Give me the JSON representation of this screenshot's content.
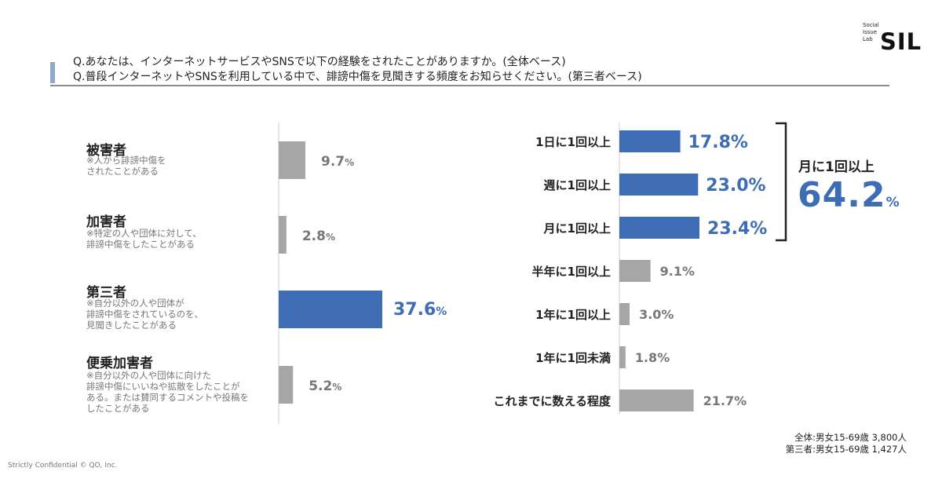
{
  "logo": {
    "line1": "Social",
    "line2": "Issue",
    "line3": "Lab",
    "mark": "SIL"
  },
  "questions": [
    "Q.あなたは、インターネットサービスやSNSで以下の経験をされたことがありますか。(全体ベース)",
    "Q.普段インターネットやSNSを利用している中で、誹謗中傷を見聞きする頻度をお知らせください。(第三者ベース)"
  ],
  "colors": {
    "highlight": "#3e6db5",
    "neutral": "#a6a6a6",
    "highlight_text": "#3e6db5",
    "neutral_text": "#777777"
  },
  "left_labels": [
    {
      "title": "被害者",
      "desc": "※人から誹謗中傷を\nされたことがある"
    },
    {
      "title": "加害者",
      "desc": "※特定の人や団体に対して、\n誹謗中傷をしたことがある"
    },
    {
      "title": "第三者",
      "desc": "※自分以外の人や団体が\n誹謗中傷をされているのを、\n見聞きしたことがある"
    },
    {
      "title": "便乗加害者",
      "desc": "※自分以外の人や団体に向けた\n誹謗中傷にいいねや拡散をしたことが\nある。または賛同するコメントや投稿を\nしたことがある"
    }
  ],
  "bracket": {
    "label": "月に1回以上",
    "value": "64.2",
    "unit": "%"
  },
  "notes": [
    "全体:男女15-69歳 3,800人",
    "第三者:男女15-69歳 1,427人"
  ],
  "footer": "Strictly Confidential © QO, Inc.",
  "chart_data": [
    {
      "type": "bar",
      "orientation": "horizontal",
      "categories": [
        "被害者",
        "加害者",
        "第三者",
        "便乗加害者"
      ],
      "values": [
        9.7,
        2.8,
        37.6,
        5.2
      ],
      "value_labels": [
        "9.7",
        "2.8",
        "37.6",
        "5.2"
      ],
      "unit": "%",
      "highlight_index": [
        2
      ]
    },
    {
      "type": "bar",
      "orientation": "horizontal",
      "categories": [
        "1日に1回以上",
        "週に1回以上",
        "月に1回以上",
        "半年に1回以上",
        "1年に1回以上",
        "1年に1回未満",
        "これまでに数える程度"
      ],
      "values": [
        17.8,
        23.0,
        23.4,
        9.1,
        3.0,
        1.8,
        21.7
      ],
      "value_labels": [
        "17.8%",
        "23.0%",
        "23.4%",
        "9.1%",
        "3.0%",
        "1.8%",
        "21.7%"
      ],
      "highlight_index": [
        0,
        1,
        2
      ]
    }
  ]
}
